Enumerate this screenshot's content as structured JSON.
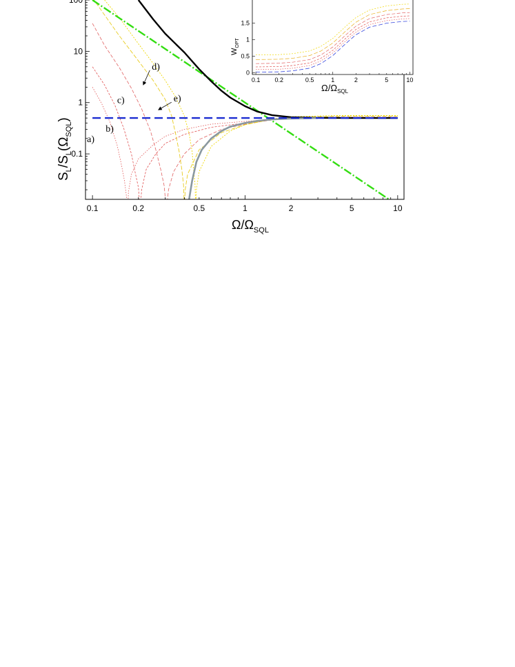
{
  "chart_data": [
    {
      "id": "main",
      "type": "line",
      "x_scale": "log",
      "y_scale": "log",
      "xlim": [
        0.09,
        11
      ],
      "ylim": [
        0.013,
        100
      ],
      "xlabel": {
        "main": "Ω/Ω",
        "sub": "SQL"
      },
      "ylabel": {
        "pre": "S",
        "s1": "L",
        "mid": "/S",
        "s2": "L",
        "paren_open": "(Ω",
        "s3": "SQL",
        "paren_close": ")"
      },
      "xticks": [
        {
          "value": 0.1,
          "label": "0.1"
        },
        {
          "value": 0.2,
          "label": "0.2"
        },
        {
          "value": 0.5,
          "label": "0.5"
        },
        {
          "value": 1,
          "label": "1"
        },
        {
          "value": 2,
          "label": "2"
        },
        {
          "value": 5,
          "label": "5"
        },
        {
          "value": 10,
          "label": "10"
        }
      ],
      "yticks": [
        {
          "value": 100,
          "label": "100"
        },
        {
          "value": 10,
          "label": "10"
        },
        {
          "value": 1,
          "label": "1"
        },
        {
          "value": 0.1,
          "label": "0.1"
        }
      ],
      "series": [
        {
          "key": "a",
          "color": "#e05050",
          "dash": "1.5,2",
          "width": 0.8,
          "points": [
            [
              0.1,
              2.0
            ],
            [
              0.115,
              0.95
            ],
            [
              0.13,
              0.42
            ],
            [
              0.145,
              0.15
            ],
            [
              0.155,
              0.06
            ],
            [
              0.162,
              0.03
            ],
            [
              0.167,
              0.015
            ],
            [
              0.169,
              0.005
            ],
            [
              0.172,
              0.018
            ],
            [
              0.18,
              0.04
            ],
            [
              0.2,
              0.08
            ],
            [
              0.25,
              0.15
            ],
            [
              0.3,
              0.22
            ],
            [
              0.4,
              0.3
            ],
            [
              0.6,
              0.38
            ],
            [
              1,
              0.43
            ],
            [
              1.5,
              0.47
            ],
            [
              2,
              0.49
            ],
            [
              4,
              0.5
            ],
            [
              10,
              0.5
            ]
          ]
        },
        {
          "key": "b",
          "color": "#e05050",
          "dash": "3,2",
          "width": 0.8,
          "points": [
            [
              0.1,
              5.0
            ],
            [
              0.12,
              2.2
            ],
            [
              0.14,
              0.9
            ],
            [
              0.16,
              0.32
            ],
            [
              0.18,
              0.1
            ],
            [
              0.19,
              0.045
            ],
            [
              0.2,
              0.022
            ],
            [
              0.205,
              0.008
            ],
            [
              0.21,
              0.02
            ],
            [
              0.225,
              0.05
            ],
            [
              0.26,
              0.1
            ],
            [
              0.3,
              0.16
            ],
            [
              0.4,
              0.24
            ],
            [
              0.6,
              0.33
            ],
            [
              1,
              0.4
            ],
            [
              1.5,
              0.46
            ],
            [
              2,
              0.49
            ],
            [
              4,
              0.51
            ],
            [
              10,
              0.51
            ]
          ]
        },
        {
          "key": "c",
          "color": "#e06060",
          "dash": "5,2.5",
          "width": 0.8,
          "points": [
            [
              0.1,
              35
            ],
            [
              0.12,
              13
            ],
            [
              0.15,
              4.8
            ],
            [
              0.18,
              1.9
            ],
            [
              0.21,
              0.75
            ],
            [
              0.24,
              0.28
            ],
            [
              0.26,
              0.12
            ],
            [
              0.28,
              0.05
            ],
            [
              0.295,
              0.024
            ],
            [
              0.305,
              0.008
            ],
            [
              0.315,
              0.02
            ],
            [
              0.34,
              0.045
            ],
            [
              0.4,
              0.1
            ],
            [
              0.5,
              0.19
            ],
            [
              0.7,
              0.3
            ],
            [
              1,
              0.38
            ],
            [
              1.5,
              0.46
            ],
            [
              2,
              0.5
            ],
            [
              4,
              0.52
            ],
            [
              10,
              0.52
            ]
          ]
        },
        {
          "key": "d",
          "color": "#e8cc20",
          "dash": "6,2.5",
          "width": 0.9,
          "points": [
            [
              0.1,
              110
            ],
            [
              0.15,
              20
            ],
            [
              0.2,
              6.5
            ],
            [
              0.25,
              2.7
            ],
            [
              0.3,
              1.15
            ],
            [
              0.33,
              0.55
            ],
            [
              0.35,
              0.25
            ],
            [
              0.37,
              0.11
            ],
            [
              0.385,
              0.05
            ],
            [
              0.395,
              0.025
            ],
            [
              0.4,
              0.008
            ],
            [
              0.405,
              0.02
            ],
            [
              0.42,
              0.04
            ],
            [
              0.5,
              0.12
            ],
            [
              0.7,
              0.26
            ],
            [
              1,
              0.37
            ],
            [
              1.5,
              0.47
            ],
            [
              2,
              0.52
            ],
            [
              4,
              0.54
            ],
            [
              10,
              0.54
            ]
          ]
        },
        {
          "key": "e",
          "color": "#f0d800",
          "dash": "2,2",
          "width": 0.9,
          "points": [
            [
              0.12,
              100
            ],
            [
              0.15,
              45
            ],
            [
              0.2,
              14
            ],
            [
              0.25,
              5.8
            ],
            [
              0.3,
              2.7
            ],
            [
              0.35,
              1.3
            ],
            [
              0.4,
              0.55
            ],
            [
              0.43,
              0.25
            ],
            [
              0.45,
              0.11
            ],
            [
              0.46,
              0.05
            ],
            [
              0.47,
              0.025
            ],
            [
              0.475,
              0.008
            ],
            [
              0.48,
              0.02
            ],
            [
              0.5,
              0.045
            ],
            [
              0.6,
              0.14
            ],
            [
              0.8,
              0.28
            ],
            [
              1,
              0.37
            ],
            [
              1.5,
              0.48
            ],
            [
              2,
              0.53
            ],
            [
              4,
              0.56
            ],
            [
              10,
              0.56
            ]
          ]
        },
        {
          "key": "sql_line",
          "color": "#33dd11",
          "dash": "12,3,2,3",
          "width": 2.4,
          "points": [
            [
              0.1,
              100
            ],
            [
              10,
              0.01
            ]
          ]
        },
        {
          "key": "envelope_upper",
          "color": "#000000",
          "dash": "",
          "width": 2.4,
          "points": [
            [
              0.2,
              100
            ],
            [
              0.25,
              42
            ],
            [
              0.3,
              22
            ],
            [
              0.4,
              9.5
            ],
            [
              0.5,
              4.5
            ],
            [
              0.6,
              2.6
            ],
            [
              0.7,
              1.7
            ],
            [
              0.8,
              1.25
            ],
            [
              1,
              0.85
            ],
            [
              1.2,
              0.67
            ],
            [
              1.5,
              0.57
            ],
            [
              2,
              0.52
            ],
            [
              3,
              0.505
            ],
            [
              5,
              0.5
            ],
            [
              10,
              0.5
            ]
          ]
        },
        {
          "key": "envelope_lower",
          "color": "#8a98a0",
          "dash": "",
          "width": 2.6,
          "points": [
            [
              0.43,
              0.013
            ],
            [
              0.45,
              0.03
            ],
            [
              0.48,
              0.07
            ],
            [
              0.52,
              0.12
            ],
            [
              0.6,
              0.2
            ],
            [
              0.7,
              0.28
            ],
            [
              0.8,
              0.34
            ],
            [
              1,
              0.4
            ],
            [
              1.2,
              0.44
            ],
            [
              1.5,
              0.47
            ],
            [
              2,
              0.49
            ],
            [
              3,
              0.5
            ]
          ]
        },
        {
          "key": "constant_half",
          "color": "#1a2bd0",
          "dash": "12,6",
          "width": 2.4,
          "points": [
            [
              0.1,
              0.5
            ],
            [
              10,
              0.5
            ]
          ]
        }
      ],
      "annotations": [
        {
          "label": "a)",
          "x": 0.092,
          "y": 0.17
        },
        {
          "label": "b)",
          "x": 0.122,
          "y": 0.27
        },
        {
          "label": "c)",
          "x": 0.145,
          "y": 0.97
        },
        {
          "label": "d)",
          "x": 0.245,
          "y": 4.4,
          "arrow_to": [
            0.215,
            2.2
          ]
        },
        {
          "label": "e)",
          "x": 0.34,
          "y": 1.05,
          "arrow_to": [
            0.27,
            0.72
          ]
        }
      ]
    },
    {
      "id": "inset",
      "type": "line",
      "x_scale": "log",
      "y_scale": "linear",
      "xlim": [
        0.09,
        11
      ],
      "ylim": [
        -0.05,
        2.2
      ],
      "xlabel": {
        "main": "Ω/Ω",
        "sub": "SQL"
      },
      "ylabel": {
        "main": "W",
        "sub": "OPT"
      },
      "xticks": [
        {
          "value": 0.1,
          "label": "0.1"
        },
        {
          "value": 0.2,
          "label": "0.2"
        },
        {
          "value": 0.5,
          "label": "0.5"
        },
        {
          "value": 1,
          "label": "1"
        },
        {
          "value": 2,
          "label": "2"
        },
        {
          "value": 5,
          "label": "5"
        },
        {
          "value": 10,
          "label": "10"
        }
      ],
      "yticks": [
        {
          "value": 0,
          "label": "0"
        },
        {
          "value": 0.5,
          "label": "0.5"
        },
        {
          "value": 1,
          "label": "1"
        },
        {
          "value": 1.5,
          "label": "1.5"
        }
      ],
      "series": [
        {
          "key": "blue",
          "color": "#3344dd",
          "dash": "6,3",
          "width": 0.8,
          "offset": 0.0
        },
        {
          "key": "a",
          "color": "#e05050",
          "dash": "1.5,2",
          "width": 0.7,
          "offset": 0.08
        },
        {
          "key": "b",
          "color": "#e05050",
          "dash": "3,2",
          "width": 0.7,
          "offset": 0.16
        },
        {
          "key": "c",
          "color": "#e06060",
          "dash": "5,2.5",
          "width": 0.7,
          "offset": 0.26
        },
        {
          "key": "d",
          "color": "#e8b020",
          "dash": "6,2.5",
          "width": 0.7,
          "offset": 0.38
        },
        {
          "key": "e",
          "color": "#f0d800",
          "dash": "2,2",
          "width": 0.7,
          "offset": 0.52
        }
      ],
      "base_curve": [
        [
          0.1,
          0.02
        ],
        [
          0.2,
          0.03
        ],
        [
          0.3,
          0.06
        ],
        [
          0.5,
          0.14
        ],
        [
          0.7,
          0.28
        ],
        [
          1,
          0.52
        ],
        [
          1.5,
          0.9
        ],
        [
          2,
          1.15
        ],
        [
          3,
          1.38
        ],
        [
          5,
          1.5
        ],
        [
          8,
          1.55
        ],
        [
          10,
          1.56
        ]
      ]
    }
  ]
}
